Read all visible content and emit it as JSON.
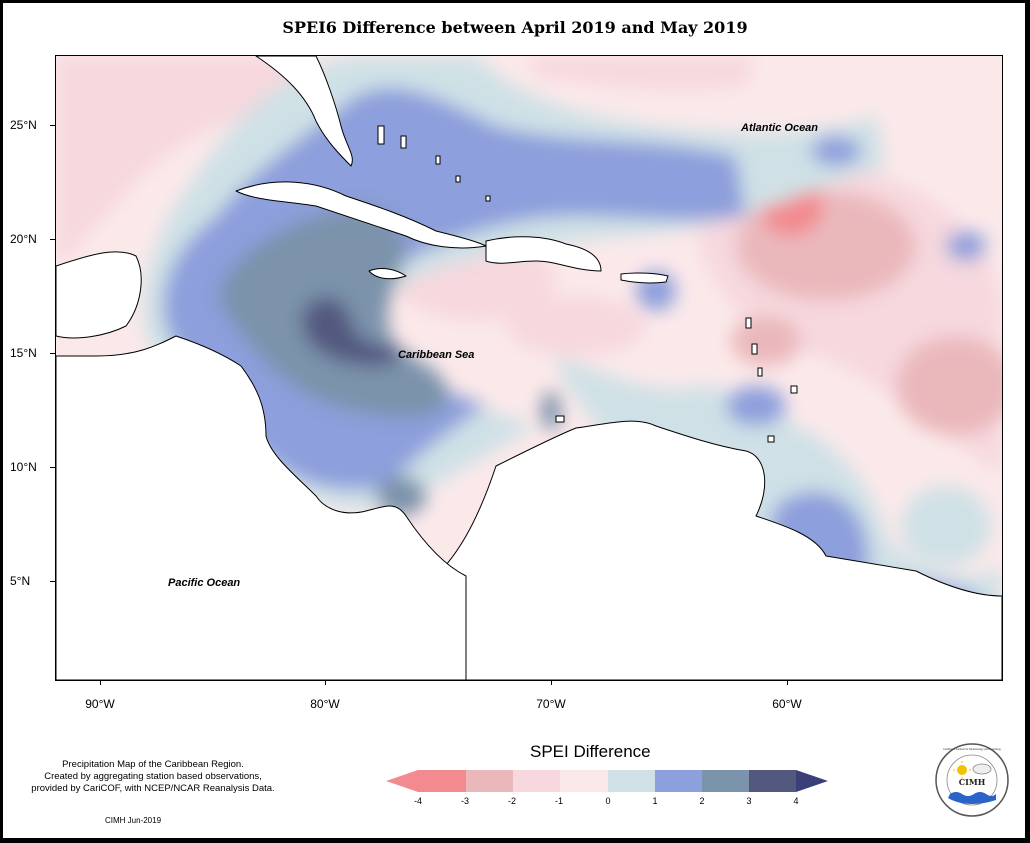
{
  "title": "SPEI6 Difference between April 2019 and May 2019",
  "map": {
    "lon_range": [
      -92,
      -50
    ],
    "lat_range": [
      1,
      28
    ],
    "lat_ticks": [
      {
        "value": 25,
        "label": "25°N"
      },
      {
        "value": 20,
        "label": "20°N"
      },
      {
        "value": 15,
        "label": "15°N"
      },
      {
        "value": 10,
        "label": "10°N"
      },
      {
        "value": 5,
        "label": "5°N"
      }
    ],
    "lon_ticks": [
      {
        "value": -90,
        "label": "90°W"
      },
      {
        "value": -80,
        "label": "80°W"
      },
      {
        "value": -70,
        "label": "70°W"
      },
      {
        "value": -60,
        "label": "60°W"
      }
    ],
    "labels": {
      "atlantic": "Atlantic Ocean",
      "caribbean": "Caribbean Sea",
      "pacific": "Pacific Ocean"
    }
  },
  "legend": {
    "title": "SPEI Difference",
    "ticks": [
      "-4",
      "-3",
      "-2",
      "-1",
      "0",
      "1",
      "2",
      "3",
      "4"
    ],
    "colors": {
      "c_n4": "#f28a8f",
      "c_n3": "#eab8bb",
      "c_n2": "#f6d8de",
      "c_n1": "#fbe9ea",
      "c_0": "#cfe1e6",
      "c_1": "#8d9fdc",
      "c_2": "#7b93ab",
      "c_3": "#53587f",
      "c_4": "#3b3f78"
    }
  },
  "note": {
    "line1": "Precipitation Map of the Caribbean Region.",
    "line2": "Created by aggregating station based observations,",
    "line3": "provided by CariCOF, with NCEP/NCAR Reanalysis Data."
  },
  "credit": "CIMH Jun-2019",
  "logo": {
    "text": "CIMH",
    "ring_text": "Caribbean Institute for Meteorology and Hydrology"
  }
}
